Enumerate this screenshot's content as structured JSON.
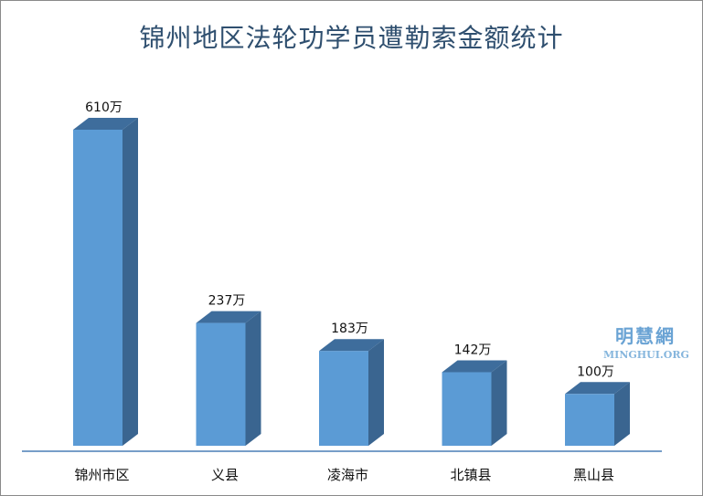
{
  "chart_data": {
    "type": "bar",
    "title": "锦州地区法轮功学员遭勒索金额统计",
    "categories": [
      "锦州市区",
      "义县",
      "凌海市",
      "北镇县",
      "黑山县"
    ],
    "values": [
      610,
      237,
      183,
      142,
      100
    ],
    "value_labels": [
      "610万",
      "237万",
      "183万",
      "142万",
      "100万"
    ],
    "ylim": [
      0,
      610
    ],
    "grid": false,
    "legend": "none"
  },
  "colors": {
    "bar_front": "#5b9bd5",
    "bar_top": "#3e6d9c",
    "bar_side": "#3a6590",
    "axis": "#4a7eb5"
  },
  "watermark": {
    "main": "明慧網",
    "sub": "MINGHUI.ORG"
  }
}
